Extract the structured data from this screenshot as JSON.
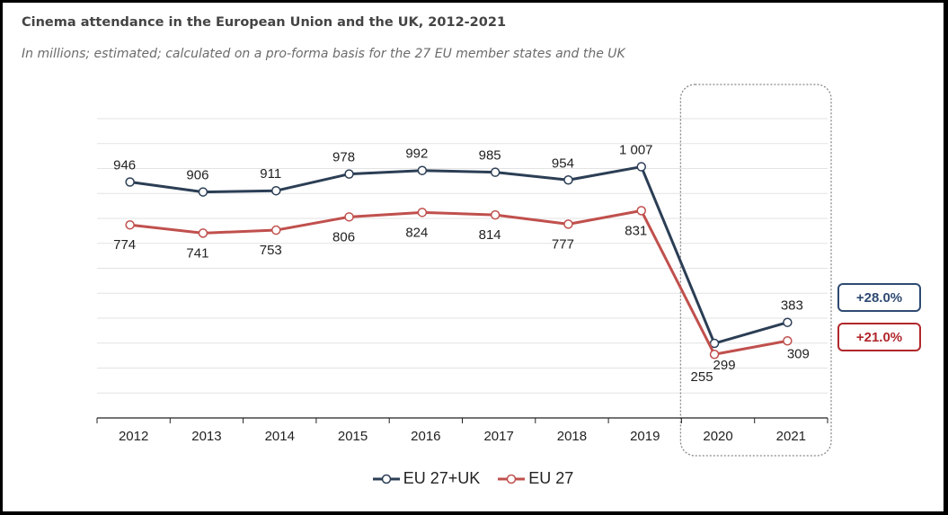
{
  "title": "Cinema attendance in the European Union and the UK, 2012-2021",
  "subtitle": "In millions; estimated; calculated on a pro-forma basis for the 27 EU member states and the UK",
  "badges": [
    {
      "text": "+28.0%",
      "color": "#2e4a72"
    },
    {
      "text": "+21.0%",
      "color": "#b0272b"
    }
  ],
  "chart_data": {
    "type": "line",
    "x": [
      "2012",
      "2013",
      "2014",
      "2015",
      "2016",
      "2017",
      "2018",
      "2019",
      "2020",
      "2021"
    ],
    "series": [
      {
        "name": "EU 27+UK",
        "color": "#2b3e55",
        "values": [
          946,
          906,
          911,
          978,
          992,
          985,
          954,
          1007,
          299,
          383
        ],
        "labels": [
          "946",
          "906",
          "911",
          "978",
          "992",
          "985",
          "954",
          "1 007",
          "299",
          "383"
        ]
      },
      {
        "name": "EU 27",
        "color": "#c0504d",
        "values": [
          774,
          741,
          753,
          806,
          824,
          814,
          777,
          831,
          255,
          309
        ],
        "labels": [
          "774",
          "741",
          "753",
          "806",
          "824",
          "814",
          "777",
          "831",
          "255",
          "309"
        ]
      }
    ],
    "ylim": [
      0,
      1200
    ],
    "grid": true,
    "legend": "bottom-center",
    "highlight_categories": [
      "2020",
      "2021"
    ]
  }
}
